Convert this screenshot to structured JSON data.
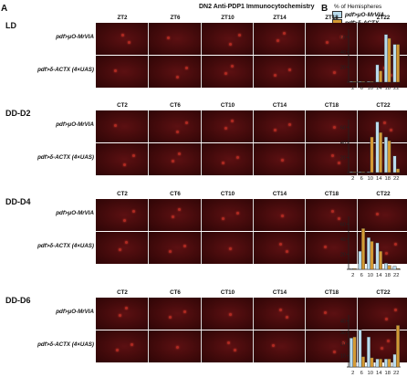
{
  "panels": {
    "a_letter": "A",
    "b_letter": "B"
  },
  "figure_title": "DN2 Anti-PDP1 Immunocytochemistry",
  "legend": {
    "title": "% of Hemispheres",
    "items": [
      {
        "label": "pdf>μO-MrVIA",
        "color": "#b9dcee"
      },
      {
        "label": "pdf>δ-ACTX",
        "color": "#d49a34"
      }
    ]
  },
  "genotypes": [
    "pdf>μO-MrVIA",
    "pdf>δ-ACTX (4×UAS)"
  ],
  "conditions": [
    {
      "name": "LD",
      "timepoints": [
        "ZT2",
        "ZT6",
        "ZT10",
        "ZT14",
        "ZT18",
        "ZT22"
      ]
    },
    {
      "name": "DD-D2",
      "timepoints": [
        "CT2",
        "CT6",
        "CT10",
        "CT14",
        "CT18",
        "CT22"
      ]
    },
    {
      "name": "DD-D4",
      "timepoints": [
        "CT2",
        "CT6",
        "CT10",
        "CT14",
        "CT18",
        "CT22"
      ]
    },
    {
      "name": "DD-D6",
      "timepoints": [
        "CT2",
        "CT6",
        "CT10",
        "CT14",
        "CT18",
        "CT22"
      ]
    }
  ],
  "chart_data": [
    {
      "type": "bar",
      "condition": "LD",
      "categories": [
        "2",
        "6",
        "10",
        "14",
        "18",
        "22"
      ],
      "ylim": [
        0,
        70
      ],
      "yticks": [
        0,
        20,
        40,
        60
      ],
      "series": [
        {
          "name": "pdf>μO-MrVIA",
          "values": [
            1,
            1,
            1,
            23,
            63,
            50
          ]
        },
        {
          "name": "pdf>δ-ACTX",
          "values": [
            1,
            1,
            1,
            15,
            58,
            50
          ]
        }
      ]
    },
    {
      "type": "bar",
      "condition": "DD-D2",
      "categories": [
        "2",
        "6",
        "10",
        "14",
        "18",
        "22"
      ],
      "ylim": [
        0,
        70
      ],
      "yticks": [
        0,
        20,
        40,
        60
      ],
      "series": [
        {
          "name": "pdf>μO-MrVIA",
          "values": [
            1,
            1,
            1,
            67,
            47,
            22
          ]
        },
        {
          "name": "pdf>δ-ACTX",
          "values": [
            1,
            1,
            47,
            53,
            42,
            5
          ]
        }
      ]
    },
    {
      "type": "bar",
      "condition": "DD-D4",
      "categories": [
        "2",
        "6",
        "10",
        "14",
        "18",
        "22"
      ],
      "ylim": [
        0,
        70
      ],
      "yticks": [
        0,
        20,
        40,
        60
      ],
      "series": [
        {
          "name": "pdf>μO-MrVIA",
          "values": [
            1,
            24,
            42,
            35,
            8,
            4
          ]
        },
        {
          "name": "pdf>δ-ACTX",
          "values": [
            1,
            54,
            37,
            24,
            5,
            1
          ]
        }
      ]
    },
    {
      "type": "bar",
      "condition": "DD-D6",
      "categories": [
        "2",
        "6",
        "10",
        "14",
        "18",
        "22"
      ],
      "ylim": [
        0,
        45
      ],
      "yticks": [
        0,
        10,
        20,
        30,
        40
      ],
      "series": [
        {
          "name": "pdf>μO-MrVIA",
          "values": [
            25,
            32,
            26,
            7,
            7,
            11
          ]
        },
        {
          "name": "pdf>δ-ACTX",
          "values": [
            26,
            9,
            8,
            7,
            7,
            36
          ]
        }
      ]
    }
  ]
}
